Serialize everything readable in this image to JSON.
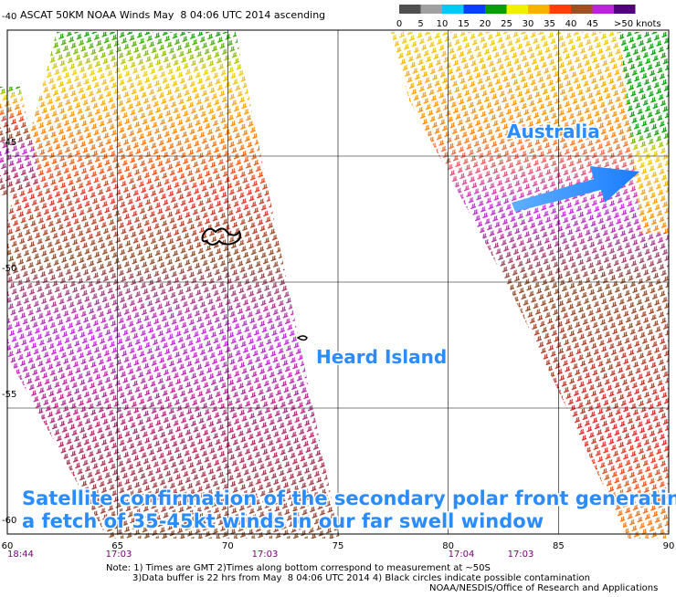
{
  "header": {
    "title": "ASCAT 50KM NOAA Winds May  8 04:06 UTC 2014 ascending"
  },
  "legend": {
    "labels": [
      0,
      5,
      10,
      15,
      20,
      25,
      30,
      35,
      40,
      45,
      ">50 knots"
    ],
    "colors": [
      "#505050",
      "#a0a0a0",
      "#00c8ff",
      "#0040ff",
      "#00a000",
      "#f0f000",
      "#ffb000",
      "#ff4000",
      "#a05020",
      "#c020e0",
      "#500080"
    ]
  },
  "map": {
    "lon_ticks": [
      60,
      65,
      70,
      75,
      80,
      85,
      90
    ],
    "lonlim": [
      60,
      90
    ],
    "lat_ticks": [
      -40,
      -45,
      -50,
      -55,
      -60
    ],
    "latlim": [
      -40,
      -60
    ],
    "times": [
      "18:44",
      "17:03",
      "17:03",
      "17:04",
      "17:03"
    ]
  },
  "annotations": {
    "australia": "Australia",
    "heard_island": "Heard Island",
    "caption": [
      "Satellite confirmation of the secondary polar front generating",
      "a fetch of 35-45kt winds in our far swell window"
    ]
  },
  "notes": [
    "Note: 1) Times are GMT 2)Times along bottom correspond to measurement at ~50S",
    "3)Data buffer is 22 hrs from May  8 04:06 UTC 2014 4) Black circles indicate possible contamination",
    "NOAA/NESDIS/Office of Research and Applications"
  ]
}
